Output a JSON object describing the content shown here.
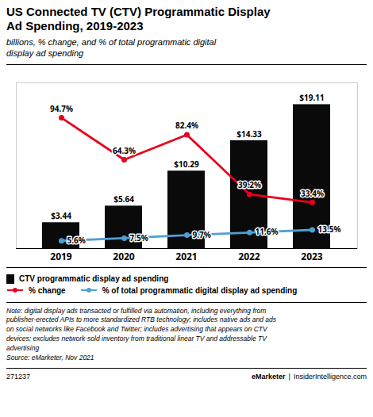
{
  "chart_data": {
    "type": "bar",
    "title": "US Connected TV (CTV) Programmatic Display\nAd Spending, 2019-2023",
    "subtitle": "billions, % change, and % of total programmatic digital\ndisplay ad spending",
    "categories": [
      "2019",
      "2020",
      "2021",
      "2022",
      "2023"
    ],
    "ylim": [
      0,
      22
    ],
    "y2lim": [
      0,
      120
    ],
    "tick_labels": "x",
    "data_labels": true,
    "series": [
      {
        "name": "CTV programmatic display ad spending",
        "type": "bar",
        "color": "#0a0a0a",
        "values": [
          3.44,
          5.64,
          10.29,
          14.33,
          19.11
        ],
        "value_labels": [
          "$3.44",
          "$5.64",
          "$10.29",
          "$14.33",
          "$19.11"
        ]
      },
      {
        "name": "% change",
        "type": "line",
        "axis": "y2",
        "color": "#e8001c",
        "marker": "circle",
        "values": [
          94.7,
          64.3,
          82.4,
          39.2,
          33.4
        ],
        "value_labels": [
          "94.7%",
          "64.3%",
          "82.4%",
          "39.2%",
          "33.4%"
        ]
      },
      {
        "name": "% of total programmatic digital display ad spending",
        "type": "line",
        "axis": "y2",
        "color": "#4f9fd4",
        "marker": "circle",
        "values": [
          5.6,
          7.5,
          9.7,
          11.6,
          13.5
        ],
        "value_labels": [
          "5.6%",
          "7.5%",
          "9.7%",
          "11.6%",
          "13.5%"
        ]
      }
    ],
    "note": "Note: digital display ads transacted or fulfilled via automation, including everything from\npublisher-erected APIs to more standardized RTB technology; includes native ads and ads\non social networks like Facebook and Twitter; includes advertising that appears on CTV\ndevices; excludes network-sold inventory from traditional linear TV and addressable TV\nadvertising\nSource: eMarketer, Nov 2021",
    "footer": {
      "left": "271237",
      "brand": "eMarketer",
      "separator": "|",
      "site": "InsiderIntelligence.com"
    }
  }
}
